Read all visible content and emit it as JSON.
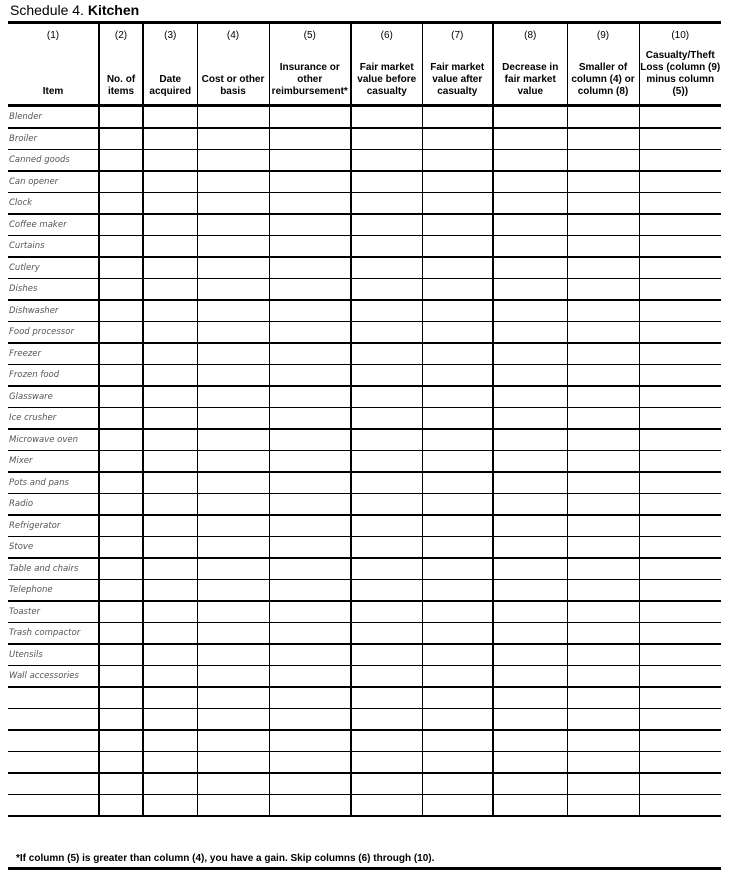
{
  "title": {
    "prefix": "Schedule 4.",
    "name": "Kitchen"
  },
  "columns": [
    {
      "num": "(1)",
      "label": "Item"
    },
    {
      "num": "(2)",
      "label": "No. of items"
    },
    {
      "num": "(3)",
      "label": "Date acquired"
    },
    {
      "num": "(4)",
      "label": "Cost or other basis"
    },
    {
      "num": "(5)",
      "label": "Insurance or other reimbursement*"
    },
    {
      "num": "(6)",
      "label": "Fair market value before casualty"
    },
    {
      "num": "(7)",
      "label": "Fair market value after casualty"
    },
    {
      "num": "(8)",
      "label": "Decrease in fair market value"
    },
    {
      "num": "(9)",
      "label": "Smaller of column (4) or column (8)"
    },
    {
      "num": "(10)",
      "label": "Casualty/Theft Loss (column (9) minus column (5))"
    }
  ],
  "items": [
    "Blender",
    "Broiler",
    "Canned goods",
    "Can opener",
    "Clock",
    "Coffee maker",
    "Curtains",
    "Cutlery",
    "Dishes",
    "Dishwasher",
    "Food processor",
    "Freezer",
    "Frozen food",
    "Glassware",
    "Ice crusher",
    "Microwave oven",
    "Mixer",
    "Pots and pans",
    "Radio",
    "Refrigerator",
    "Stove",
    "Table and chairs",
    "Telephone",
    "Toaster",
    "Trash compactor",
    "Utensils",
    "Wall accessories",
    "",
    "",
    "",
    "",
    "",
    ""
  ],
  "footnote": "*If column (5) is greater than column (4), you have a gain. Skip columns (6) through (10)."
}
